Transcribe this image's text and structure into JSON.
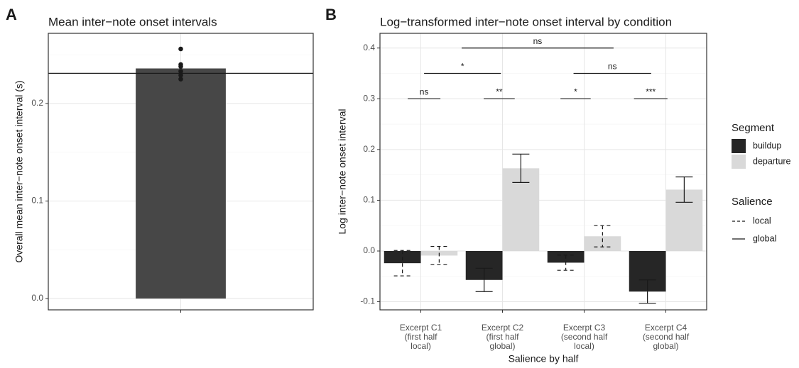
{
  "chart_data": [
    {
      "type": "bar",
      "panel_label": "A",
      "title": "Mean inter−note onset intervals",
      "y_label": "Overall mean inter−note onset interval (s)",
      "categories": [
        null
      ],
      "values": [
        0.236
      ],
      "color": "#474747",
      "points": [
        0.256,
        0.24,
        0.238,
        0.233,
        0.229,
        0.225
      ],
      "point_color": "#1a1a1a",
      "hline": 0.231,
      "ylim": [
        -0.0116,
        0.272
      ],
      "yticks": [
        {
          "value": 0,
          "label": "0.0"
        },
        0.1,
        0.2
      ],
      "minor_yticks": [
        0.05,
        0.15,
        0.25
      ],
      "grid": true
    },
    {
      "type": "bar",
      "panel_label": "B",
      "title": "Log−transformed inter−note onset interval by condition",
      "y_label": "Log inter−note onset interval",
      "x_label": "Salience by half",
      "categories": [
        [
          "Excerpt C1",
          "(first half",
          "local)"
        ],
        [
          "Excerpt C2",
          "(first half",
          "global)"
        ],
        [
          "Excerpt C3",
          "(second half",
          "local)"
        ],
        [
          "Excerpt C4",
          "(second half",
          "global)"
        ]
      ],
      "legend_title": "Segment",
      "series": [
        {
          "name": "buildup",
          "color": "#262626",
          "values": [
            -0.024,
            -0.057,
            -0.023,
            -0.08
          ],
          "errors": [
            0.025,
            0.023,
            0.015,
            0.023
          ]
        },
        {
          "name": "departure",
          "color": "#d9d9d9",
          "values": [
            -0.009,
            0.163,
            0.029,
            0.121
          ],
          "errors": [
            0.018,
            0.028,
            0.021,
            0.025
          ]
        }
      ],
      "error_linetype": [
        "dashed",
        "solid",
        "dashed",
        "solid"
      ],
      "linetype_legend": {
        "title": "Salience",
        "items": [
          {
            "label": "local",
            "linetype": "dashed"
          },
          {
            "label": "global",
            "linetype": "solid"
          }
        ]
      },
      "annotations": [
        {
          "label": "ns",
          "y": 0.4,
          "x": [
            0.5,
            2.36
          ]
        },
        {
          "label": "*",
          "y": 0.35,
          "x": [
            0.04,
            0.98
          ]
        },
        {
          "label": "ns",
          "y": 0.35,
          "x": [
            1.87,
            2.82
          ]
        },
        {
          "label": "ns",
          "y": 0.3,
          "x": [
            -0.16,
            0.24
          ]
        },
        {
          "label": "**",
          "y": 0.3,
          "x": [
            0.77,
            1.15
          ]
        },
        {
          "label": "*",
          "y": 0.3,
          "x": [
            1.71,
            2.08
          ]
        },
        {
          "label": "***",
          "y": 0.3,
          "x": [
            2.61,
            3.02
          ]
        }
      ],
      "ylim": [
        -0.116,
        0.429
      ],
      "yticks": [
        -0.1,
        {
          "value": 0,
          "label": "0.0"
        },
        0.1,
        0.2,
        0.3,
        0.4
      ],
      "minor_yticks": [
        -0.05,
        0.05,
        0.15,
        0.25,
        0.35
      ],
      "grid": true
    }
  ]
}
